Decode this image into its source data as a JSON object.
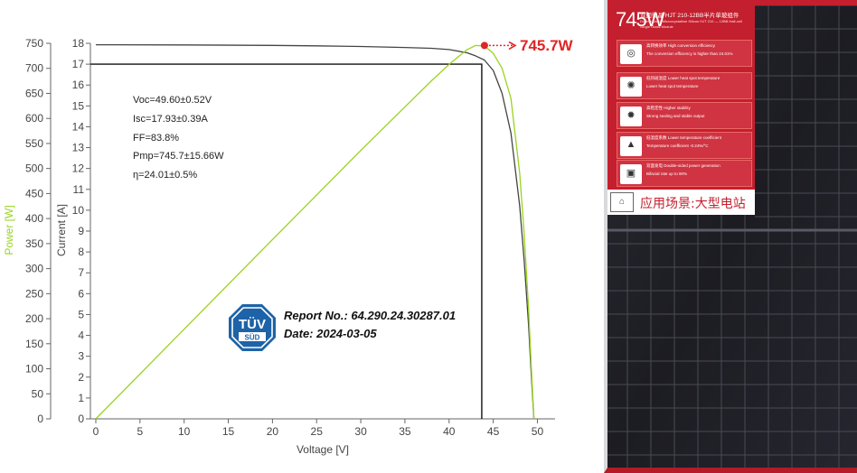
{
  "chart_data": {
    "type": "line",
    "title": "",
    "xlabel": "Voltage [V]",
    "ylabel_left": "Power [W]",
    "ylabel_right": "Current [A]",
    "xlim": [
      0,
      52
    ],
    "x_ticks": [
      0,
      5,
      10,
      15,
      20,
      25,
      30,
      35,
      40,
      45,
      50
    ],
    "power_lim": [
      0,
      750
    ],
    "power_ticks": [
      0,
      50,
      100,
      150,
      200,
      250,
      300,
      350,
      400,
      450,
      500,
      550,
      600,
      650,
      700,
      750
    ],
    "current_lim": [
      0,
      18
    ],
    "current_ticks": [
      0,
      1,
      2,
      3,
      4,
      5,
      6,
      7,
      8,
      9,
      10,
      11,
      12,
      13,
      14,
      15,
      16,
      17,
      18
    ],
    "grid": false,
    "series": [
      {
        "axis": "current",
        "color": "#444444",
        "x": [
          0,
          10,
          20,
          25,
          30,
          35,
          38,
          40,
          42,
          43,
          44,
          45,
          46,
          47,
          48,
          48.5,
          49,
          49.3,
          49.6
        ],
        "y": [
          17.93,
          17.92,
          17.9,
          17.88,
          17.85,
          17.8,
          17.76,
          17.7,
          17.55,
          17.4,
          17.2,
          16.7,
          15.6,
          13.7,
          10.2,
          7.6,
          4.5,
          2.2,
          0
        ]
      },
      {
        "axis": "power",
        "color": "#9ad31e",
        "x": [
          0,
          10,
          20,
          25,
          30,
          35,
          38,
          40,
          42,
          43,
          44,
          45,
          46,
          47,
          48,
          48.5,
          49,
          49.3,
          49.6
        ],
        "y": [
          0,
          179,
          358,
          447,
          536,
          623,
          675,
          708,
          737,
          745.7,
          745,
          730,
          700,
          640,
          490,
          370,
          220,
          108,
          0
        ]
      }
    ],
    "mpp": {
      "voltage": 43.7,
      "current": 17.0,
      "power": 745.7
    },
    "peak_annotation": "745.7W"
  },
  "params": [
    "Voc=49.60±0.52V",
    "Isc=17.93±0.39A",
    "FF=83.8%",
    "Pmp=745.7±15.66W",
    "η=24.01±0.5%"
  ],
  "report": {
    "number": "Report No.: 64.290.24.30287.01",
    "date": "Date: 2024-03-05"
  },
  "logo": {
    "top": "TÜV",
    "bottom": "SÜD"
  },
  "panel": {
    "power": "745W",
    "title": "双面微晶 HJT 210-12BB半片单玻组件",
    "subtitle1": "Double-sided Microcrystalline Silicon HJT 210 — 12BB Half-cell",
    "subtitle2": "Single Glass Module",
    "features": [
      {
        "icon": "efficiency-icon",
        "glyph": "◎",
        "cn": "高转换效率 High conversion efficiency",
        "en": "The conversion efficiency is higher than 24.01%"
      },
      {
        "icon": "hotspot-icon",
        "glyph": "✺",
        "cn": "低热斑温度 Lower heat spot temperature",
        "en": "Lower heat spot temperature"
      },
      {
        "icon": "stability-icon",
        "glyph": "✹",
        "cn": "高稳定性 Higher stability",
        "en": "Strong sealing and stable output"
      },
      {
        "icon": "temperature-icon",
        "glyph": "▲",
        "cn": "低温度系数 Lower temperature coefficient",
        "en": "Temperature coefficient -0.24%/°C"
      },
      {
        "icon": "bifacial-icon",
        "glyph": "▣",
        "cn": "双面发电 Double-sided power generation",
        "en": "Bifacial rate up to 90%"
      }
    ],
    "application": "应用场景:大型电站"
  }
}
